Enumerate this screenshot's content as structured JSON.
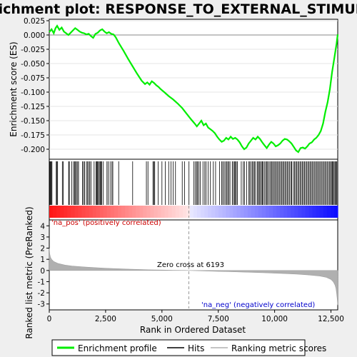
{
  "chart_data": [
    {
      "type": "line",
      "title": "Enrichment plot: RESPONSE_TO_EXTERNAL_STIMULUS",
      "ylabel": "Enrichment score (ES)",
      "xlim": [
        0,
        12800
      ],
      "ylim": [
        -0.215,
        0.025
      ],
      "yticks": [
        0.025,
        0.0,
        -0.025,
        -0.05,
        -0.075,
        -0.1,
        -0.125,
        -0.15,
        -0.175,
        -0.2
      ],
      "ytick_labels": [
        "0.025",
        "0.000",
        "-0.025",
        "-0.050",
        "-0.075",
        "-0.100",
        "-0.125",
        "-0.150",
        "-0.175",
        "-0.200"
      ],
      "series": [
        {
          "name": "Enrichment profile",
          "color": "#00ee00",
          "x": [
            0,
            100,
            200,
            280,
            350,
            450,
            550,
            650,
            750,
            850,
            950,
            1050,
            1150,
            1250,
            1350,
            1450,
            1550,
            1650,
            1750,
            1850,
            1950,
            2050,
            2150,
            2250,
            2350,
            2450,
            2550,
            2650,
            2750,
            2850,
            2950,
            3100,
            3300,
            3500,
            3700,
            3900,
            4100,
            4250,
            4350,
            4450,
            4550,
            4650,
            4750,
            4850,
            4950,
            5100,
            5300,
            5500,
            5700,
            5900,
            6100,
            6300,
            6450,
            6550,
            6650,
            6750,
            6850,
            6950,
            7050,
            7150,
            7250,
            7350,
            7450,
            7550,
            7650,
            7750,
            7850,
            7950,
            8050,
            8150,
            8250,
            8350,
            8450,
            8550,
            8650,
            8750,
            8850,
            8950,
            9050,
            9150,
            9250,
            9350,
            9450,
            9550,
            9650,
            9750,
            9850,
            9950,
            10050,
            10150,
            10250,
            10350,
            10450,
            10550,
            10650,
            10750,
            10850,
            10950,
            11050,
            11150,
            11250,
            11350,
            11450,
            11550,
            11650,
            11750,
            11850,
            11950,
            12050,
            12150,
            12250,
            12350,
            12450,
            12550,
            12650,
            12750,
            12800
          ],
          "y": [
            0.005,
            0.01,
            0.003,
            0.012,
            0.016,
            0.009,
            0.013,
            0.006,
            0.003,
            0.0,
            0.004,
            0.008,
            0.012,
            0.009,
            0.006,
            0.004,
            0.003,
            0.001,
            0.002,
            -0.002,
            -0.005,
            0.002,
            0.004,
            0.008,
            0.01,
            0.006,
            0.003,
            0.005,
            0.002,
            0.001,
            -0.004,
            -0.015,
            -0.028,
            -0.042,
            -0.055,
            -0.068,
            -0.08,
            -0.086,
            -0.083,
            -0.087,
            -0.081,
            -0.084,
            -0.088,
            -0.091,
            -0.095,
            -0.1,
            -0.107,
            -0.113,
            -0.12,
            -0.128,
            -0.138,
            -0.148,
            -0.155,
            -0.16,
            -0.155,
            -0.15,
            -0.158,
            -0.155,
            -0.162,
            -0.165,
            -0.168,
            -0.172,
            -0.178,
            -0.183,
            -0.187,
            -0.185,
            -0.18,
            -0.183,
            -0.178,
            -0.182,
            -0.18,
            -0.183,
            -0.188,
            -0.195,
            -0.2,
            -0.197,
            -0.19,
            -0.185,
            -0.18,
            -0.183,
            -0.178,
            -0.182,
            -0.188,
            -0.193,
            -0.198,
            -0.192,
            -0.187,
            -0.19,
            -0.195,
            -0.193,
            -0.19,
            -0.185,
            -0.182,
            -0.183,
            -0.186,
            -0.19,
            -0.196,
            -0.202,
            -0.205,
            -0.198,
            -0.197,
            -0.199,
            -0.195,
            -0.19,
            -0.188,
            -0.183,
            -0.18,
            -0.175,
            -0.168,
            -0.155,
            -0.135,
            -0.118,
            -0.095,
            -0.065,
            -0.04,
            -0.015,
            0.001
          ]
        }
      ]
    },
    {
      "type": "scatter",
      "series": [
        {
          "name": "Hits",
          "color": "#000000",
          "x": [
            30,
            60,
            90,
            120,
            310,
            340,
            370,
            580,
            620,
            860,
            890,
            1000,
            1080,
            1120,
            1170,
            1200,
            1260,
            1300,
            1470,
            1520,
            1570,
            1650,
            1700,
            1750,
            1800,
            1850,
            1990,
            2070,
            2110,
            2140,
            2180,
            2220,
            2260,
            2290,
            2330,
            2400,
            2560,
            2620,
            2700,
            2780,
            2820,
            3080,
            3700,
            4310,
            4380,
            4600,
            4640,
            4680,
            4830,
            5000,
            5150,
            5300,
            5400,
            5500,
            5600,
            5900,
            6000,
            6200,
            6420,
            6480,
            6540,
            6580,
            6640,
            6700,
            6820,
            6900,
            6960,
            7050,
            7150,
            7280,
            7380,
            7560,
            7650,
            7700,
            7760,
            7820,
            7870,
            7920,
            7970,
            8020,
            8120,
            8170,
            8220,
            8260,
            8300,
            8350,
            8520,
            8610,
            8660,
            8760,
            8860,
            8900,
            8960,
            9020,
            9060,
            9110,
            9160,
            9240,
            9280,
            9320,
            9360,
            9420,
            9460,
            9500,
            9560,
            9620,
            9660,
            9700,
            9760,
            9820,
            9860,
            9910,
            9960,
            10010,
            10060,
            10110,
            10160,
            10210,
            10260,
            10310,
            10360,
            10410,
            10460,
            10510,
            10560,
            10610,
            10660,
            10720,
            10760,
            10830,
            10880,
            10930,
            10980,
            11030,
            11080,
            11130,
            11180,
            11230,
            11280,
            11330,
            11380,
            11430,
            11480,
            11530,
            11580,
            11630,
            11680,
            11730,
            11780,
            11830,
            11880,
            11930,
            11980,
            12030,
            12080,
            12130,
            12180,
            12230,
            12280,
            12330,
            12380,
            12430,
            12480,
            12520,
            12560,
            12600,
            12640,
            12680,
            12720,
            12760
          ]
        }
      ]
    },
    {
      "type": "area",
      "ylabel": "Ranked list metric (PreRanked)",
      "xlabel": "Rank in Ordered Dataset",
      "xlim": [
        0,
        12800
      ],
      "ylim": [
        -3.4,
        4.4
      ],
      "yticks": [
        4,
        3,
        2,
        1,
        0,
        -1,
        -2,
        -3
      ],
      "ytick_labels": [
        "4",
        "3",
        "2",
        "1",
        "0",
        "-1",
        "-2",
        "-3"
      ],
      "xticks": [
        0,
        2500,
        5000,
        7500,
        10000,
        12500
      ],
      "xtick_labels": [
        "0",
        "2,500",
        "5,000",
        "7,500",
        "10,000",
        "12,500"
      ],
      "series": [
        {
          "name": "Ranking metric scores",
          "color": "#b0b0b0",
          "x": [
            0,
            20,
            50,
            100,
            200,
            400,
            700,
            1000,
            1500,
            2000,
            2500,
            3000,
            3500,
            4000,
            4500,
            5000,
            5500,
            6000,
            6193,
            6500,
            7000,
            7500,
            8000,
            8500,
            9000,
            9500,
            10000,
            10500,
            11000,
            11500,
            12000,
            12300,
            12500,
            12600,
            12680,
            12720,
            12750,
            12780,
            12800
          ],
          "y": [
            2.0,
            1.5,
            1.2,
            1.0,
            0.8,
            0.62,
            0.48,
            0.4,
            0.32,
            0.26,
            0.2,
            0.16,
            0.12,
            0.09,
            0.06,
            0.04,
            0.02,
            0.005,
            0.0,
            -0.02,
            -0.05,
            -0.08,
            -0.11,
            -0.14,
            -0.17,
            -0.2,
            -0.24,
            -0.28,
            -0.33,
            -0.4,
            -0.5,
            -0.62,
            -0.8,
            -1.0,
            -1.3,
            -1.6,
            -2.0,
            -2.6,
            -3.1
          ]
        }
      ],
      "annotations": [
        {
          "text": "'na_pos' (positively correlated)",
          "color": "#cc0000"
        },
        {
          "text": "Zero cross at 6193",
          "color": "#000000",
          "x": 6193
        },
        {
          "text": "'na_neg' (negatively correlated)",
          "color": "#0000cc"
        }
      ]
    }
  ],
  "legend": {
    "items": [
      {
        "label": "Enrichment profile",
        "color": "#00ee00"
      },
      {
        "label": "Hits",
        "color": "#000000"
      },
      {
        "label": "Ranking metric scores",
        "color": "#b0b0b0"
      }
    ]
  }
}
